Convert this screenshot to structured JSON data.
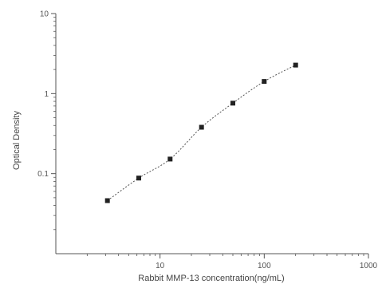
{
  "chart_data": {
    "type": "scatter",
    "title": "",
    "xlabel": "Rabbit MMP-13 concentration(ng/mL)",
    "ylabel": "Optical Density",
    "x_scale": "log",
    "y_scale": "log",
    "xlim": [
      1,
      1000
    ],
    "ylim": [
      0.01,
      10
    ],
    "x_ticks": [
      {
        "value": 10,
        "label": "10"
      },
      {
        "value": 100,
        "label": "100"
      },
      {
        "value": 1000,
        "label": "1000"
      }
    ],
    "y_ticks": [
      {
        "value": 10,
        "label": "10"
      },
      {
        "value": 1,
        "label": "1"
      },
      {
        "value": 0.1,
        "label": "0.1"
      }
    ],
    "grid": false,
    "legend": "none",
    "series": [
      {
        "x": [
          3.125,
          6.25,
          12.5,
          25,
          50,
          100,
          200
        ],
        "y": [
          0.046,
          0.088,
          0.152,
          0.38,
          0.76,
          1.42,
          2.27
        ],
        "marker": "square",
        "fit_curve": "dashed"
      }
    ],
    "colors": {
      "axis": "#555555",
      "marker": "#222222",
      "curve": "#555555"
    }
  }
}
